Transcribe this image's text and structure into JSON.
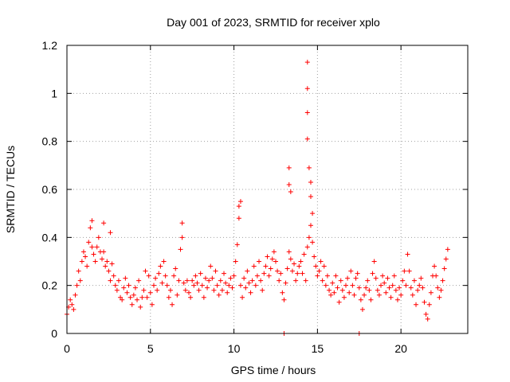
{
  "chart_data": {
    "type": "scatter",
    "title": "Day 001 of 2023, SRMTID for receiver xplo",
    "xlabel": "GPS time / hours",
    "ylabel": "SRMTID / TECUs",
    "xlim": [
      0,
      24
    ],
    "ylim": [
      0,
      1.2
    ],
    "xticks": [
      0,
      5,
      10,
      15,
      20
    ],
    "xtick_labels": [
      "0",
      "5",
      "10",
      "15",
      "20"
    ],
    "yticks": [
      0,
      0.2,
      0.4,
      0.6,
      0.8,
      1,
      1.2
    ],
    "ytick_labels": [
      "0",
      "0.2",
      "0.4",
      "0.6",
      "0.8",
      "1",
      "1.2"
    ],
    "grid": true,
    "marker": "plus",
    "color": "#ff0000",
    "series": [
      {
        "name": "SRMTID",
        "x": [
          0.0,
          0.1,
          0.2,
          0.3,
          0.4,
          0.5,
          0.6,
          0.7,
          0.8,
          0.9,
          1.0,
          1.1,
          1.2,
          1.3,
          1.4,
          1.5,
          1.6,
          1.7,
          1.8,
          1.9,
          2.0,
          2.1,
          2.2,
          2.3,
          2.4,
          2.5,
          2.6,
          2.7,
          2.8,
          2.9,
          3.0,
          3.1,
          3.2,
          3.3,
          3.4,
          3.5,
          3.6,
          3.7,
          3.8,
          3.9,
          4.0,
          4.1,
          4.2,
          4.3,
          4.4,
          4.5,
          4.6,
          4.7,
          4.8,
          4.9,
          5.0,
          5.1,
          5.2,
          5.3,
          5.4,
          5.5,
          5.6,
          5.7,
          5.8,
          5.9,
          6.0,
          6.1,
          6.2,
          6.3,
          6.4,
          6.5,
          6.6,
          6.7,
          6.8,
          6.9,
          7.0,
          7.1,
          7.2,
          7.3,
          7.4,
          7.5,
          7.6,
          7.7,
          7.8,
          7.9,
          8.0,
          8.1,
          8.2,
          8.3,
          8.4,
          8.5,
          8.6,
          8.7,
          8.8,
          8.9,
          9.0,
          9.1,
          9.2,
          9.3,
          9.4,
          9.5,
          9.6,
          9.7,
          9.8,
          9.9,
          10.0,
          10.1,
          10.2,
          10.3,
          10.4,
          10.5,
          10.6,
          10.7,
          10.8,
          10.9,
          11.0,
          11.1,
          11.2,
          11.3,
          11.4,
          11.5,
          11.6,
          11.7,
          11.8,
          11.9,
          12.0,
          12.1,
          12.2,
          12.3,
          12.4,
          12.5,
          12.6,
          12.7,
          12.8,
          12.9,
          13.0,
          13.1,
          13.2,
          13.3,
          13.4,
          13.5,
          13.6,
          13.7,
          13.8,
          13.9,
          14.0,
          14.1,
          14.2,
          14.3,
          14.4,
          14.5,
          14.6,
          14.7,
          14.8,
          14.9,
          15.0,
          15.1,
          15.2,
          15.3,
          15.4,
          15.5,
          15.6,
          15.7,
          15.8,
          15.9,
          16.0,
          16.1,
          16.2,
          16.3,
          16.4,
          16.5,
          16.6,
          16.7,
          16.8,
          16.9,
          17.0,
          17.1,
          17.2,
          17.3,
          17.4,
          17.5,
          17.6,
          17.7,
          17.8,
          17.9,
          18.0,
          18.1,
          18.2,
          18.3,
          18.4,
          18.5,
          18.6,
          18.7,
          18.8,
          18.9,
          19.0,
          19.1,
          19.2,
          19.3,
          19.4,
          19.5,
          19.6,
          19.7,
          19.8,
          19.9,
          20.0,
          20.1,
          20.2,
          20.3,
          20.4,
          20.5,
          20.6,
          20.7,
          20.8,
          20.9,
          21.0,
          21.1,
          21.2,
          21.3,
          21.4,
          21.5,
          21.6,
          21.7,
          21.8,
          21.9,
          22.0,
          22.1,
          22.2,
          22.3,
          22.4,
          22.5,
          22.6,
          22.7,
          22.8,
          1.5,
          2.2,
          2.6,
          6.9,
          10.3,
          10.4,
          13.0,
          13.3,
          13.3,
          13.4,
          14.4,
          14.4,
          14.4,
          14.4,
          14.5,
          14.6,
          14.6,
          14.7,
          17.5
        ],
        "y": [
          0.08,
          0.11,
          0.14,
          0.12,
          0.1,
          0.16,
          0.2,
          0.26,
          0.22,
          0.3,
          0.34,
          0.32,
          0.28,
          0.38,
          0.44,
          0.36,
          0.33,
          0.3,
          0.36,
          0.4,
          0.34,
          0.31,
          0.34,
          0.28,
          0.3,
          0.26,
          0.22,
          0.29,
          0.24,
          0.2,
          0.18,
          0.22,
          0.15,
          0.14,
          0.19,
          0.23,
          0.17,
          0.2,
          0.15,
          0.12,
          0.16,
          0.19,
          0.14,
          0.22,
          0.11,
          0.15,
          0.18,
          0.26,
          0.15,
          0.24,
          0.17,
          0.12,
          0.2,
          0.23,
          0.18,
          0.25,
          0.28,
          0.21,
          0.3,
          0.24,
          0.2,
          0.15,
          0.18,
          0.12,
          0.24,
          0.27,
          0.16,
          0.22,
          0.35,
          0.4,
          0.21,
          0.18,
          0.22,
          0.17,
          0.15,
          0.22,
          0.2,
          0.24,
          0.21,
          0.18,
          0.25,
          0.2,
          0.15,
          0.23,
          0.19,
          0.22,
          0.28,
          0.23,
          0.18,
          0.26,
          0.2,
          0.16,
          0.22,
          0.18,
          0.25,
          0.21,
          0.17,
          0.2,
          0.23,
          0.19,
          0.24,
          0.3,
          0.37,
          0.48,
          0.2,
          0.15,
          0.23,
          0.19,
          0.26,
          0.21,
          0.17,
          0.22,
          0.28,
          0.2,
          0.24,
          0.3,
          0.22,
          0.18,
          0.25,
          0.28,
          0.32,
          0.24,
          0.27,
          0.31,
          0.34,
          0.3,
          0.26,
          0.22,
          0.25,
          0.17,
          0.14,
          0.21,
          0.27,
          0.34,
          0.31,
          0.26,
          0.29,
          0.22,
          0.25,
          0.28,
          0.3,
          0.25,
          0.33,
          0.22,
          0.36,
          0.4,
          0.45,
          0.38,
          0.32,
          0.28,
          0.24,
          0.26,
          0.3,
          0.22,
          0.28,
          0.2,
          0.24,
          0.18,
          0.16,
          0.21,
          0.17,
          0.24,
          0.19,
          0.13,
          0.22,
          0.18,
          0.15,
          0.2,
          0.23,
          0.17,
          0.26,
          0.2,
          0.16,
          0.23,
          0.25,
          0.19,
          0.14,
          0.1,
          0.16,
          0.19,
          0.22,
          0.18,
          0.14,
          0.25,
          0.3,
          0.23,
          0.18,
          0.16,
          0.2,
          0.24,
          0.21,
          0.17,
          0.23,
          0.19,
          0.15,
          0.2,
          0.24,
          0.18,
          0.14,
          0.19,
          0.16,
          0.22,
          0.26,
          0.2,
          0.33,
          0.26,
          0.19,
          0.16,
          0.22,
          0.12,
          0.18,
          0.2,
          0.23,
          0.19,
          0.13,
          0.08,
          0.06,
          0.12,
          0.17,
          0.24,
          0.28,
          0.24,
          0.19,
          0.15,
          0.18,
          0.22,
          0.27,
          0.31,
          0.35,
          0.47,
          0.46,
          0.42,
          0.46,
          0.53,
          0.55,
          0.0,
          0.62,
          0.69,
          0.59,
          1.13,
          1.02,
          0.92,
          0.81,
          0.69,
          0.63,
          0.57,
          0.5,
          0.0
        ]
      }
    ]
  }
}
